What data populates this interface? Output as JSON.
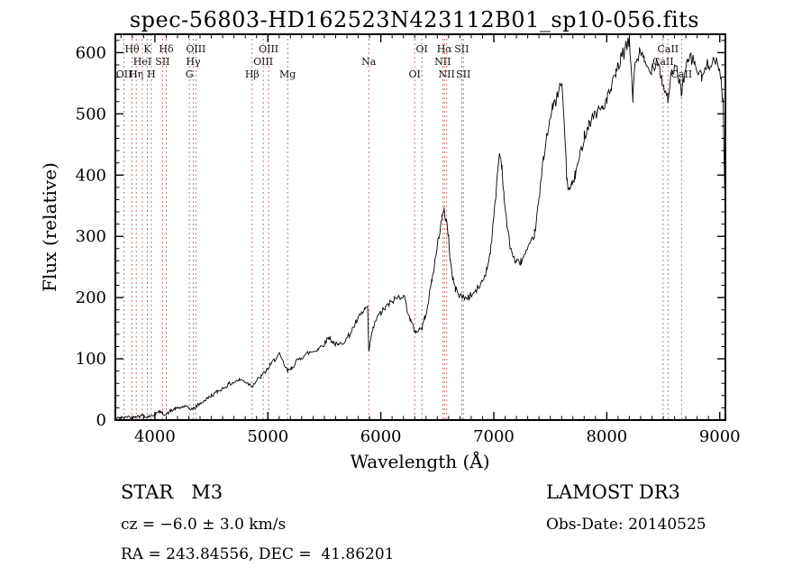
{
  "title": "spec-56803-HD162523N423112B01_sp10-056.fits",
  "annotations": {
    "object_type": "STAR   M3",
    "survey": "LAMOST DR3",
    "cz": "cz = −6.0 ± 3.0 km/s",
    "obs_date": "Obs-Date: 20140525",
    "radec": "RA = 243.84556, DEC =  41.86201"
  },
  "chart_data": {
    "type": "line",
    "title": "spec-56803-HD162523N423112B01_sp10-056.fits",
    "xlabel": "Wavelength (Å)",
    "ylabel": "Flux (relative)",
    "xlim": [
      3650,
      9050
    ],
    "ylim": [
      0,
      630
    ],
    "x_ticks": [
      4000,
      5000,
      6000,
      7000,
      8000,
      9000
    ],
    "y_ticks": [
      0,
      100,
      200,
      300,
      400,
      500,
      600
    ],
    "grid": false,
    "legend": "none",
    "line_color": "#000000",
    "marker_color": "#b25050",
    "noise": {
      "seed": 42,
      "base": 2.5,
      "scale": 0.016,
      "step": 9
    },
    "line_markers": [
      {
        "label": "OII",
        "wavelength": 3727,
        "row": 3
      },
      {
        "label": "Hθ",
        "wavelength": 3798,
        "row": 1
      },
      {
        "label": "Hη",
        "wavelength": 3835,
        "row": 3
      },
      {
        "label": "HeI",
        "wavelength": 3889,
        "row": 2
      },
      {
        "label": "K",
        "wavelength": 3933,
        "row": 1
      },
      {
        "label": "H",
        "wavelength": 3968,
        "row": 3
      },
      {
        "label": "SII",
        "wavelength": 4068,
        "row": 2
      },
      {
        "label": "Hδ",
        "wavelength": 4101,
        "row": 1
      },
      {
        "label": "G",
        "wavelength": 4305,
        "row": 3
      },
      {
        "label": "Hγ",
        "wavelength": 4340,
        "row": 2
      },
      {
        "label": "OIII",
        "wavelength": 4363,
        "row": 1
      },
      {
        "label": "Hβ",
        "wavelength": 4861,
        "row": 3
      },
      {
        "label": "OIII",
        "wavelength": 4959,
        "row": 2
      },
      {
        "label": "OIII",
        "wavelength": 5007,
        "row": 1
      },
      {
        "label": "Mg",
        "wavelength": 5175,
        "row": 3
      },
      {
        "label": "Na",
        "wavelength": 5893,
        "row": 2
      },
      {
        "label": "OI",
        "wavelength": 6300,
        "row": 3
      },
      {
        "label": "OI",
        "wavelength": 6363,
        "row": 1
      },
      {
        "label": "NII",
        "wavelength": 6548,
        "row": 2
      },
      {
        "label": "Hα",
        "wavelength": 6563,
        "row": 1
      },
      {
        "label": "NII",
        "wavelength": 6583,
        "row": 3
      },
      {
        "label": "SII",
        "wavelength": 6716,
        "row": 1
      },
      {
        "label": "SII",
        "wavelength": 6731,
        "row": 3
      },
      {
        "label": "CaII",
        "wavelength": 8498,
        "row": 2
      },
      {
        "label": "CaII",
        "wavelength": 8542,
        "row": 1
      },
      {
        "label": "CaII",
        "wavelength": 8662,
        "row": 3
      }
    ],
    "spectrum_anchors": [
      [
        3650,
        2
      ],
      [
        3690,
        4
      ],
      [
        3727,
        3
      ],
      [
        3760,
        6
      ],
      [
        3798,
        4
      ],
      [
        3830,
        7
      ],
      [
        3860,
        6
      ],
      [
        3900,
        8
      ],
      [
        3933,
        5
      ],
      [
        3950,
        7
      ],
      [
        3968,
        6
      ],
      [
        4000,
        10
      ],
      [
        4040,
        13
      ],
      [
        4070,
        11
      ],
      [
        4101,
        9
      ],
      [
        4140,
        15
      ],
      [
        4180,
        18
      ],
      [
        4220,
        20
      ],
      [
        4260,
        22
      ],
      [
        4305,
        19
      ],
      [
        4340,
        18
      ],
      [
        4363,
        22
      ],
      [
        4400,
        27
      ],
      [
        4450,
        33
      ],
      [
        4500,
        40
      ],
      [
        4550,
        46
      ],
      [
        4600,
        52
      ],
      [
        4650,
        58
      ],
      [
        4700,
        62
      ],
      [
        4750,
        66
      ],
      [
        4800,
        63
      ],
      [
        4830,
        59
      ],
      [
        4861,
        56
      ],
      [
        4900,
        64
      ],
      [
        4940,
        71
      ],
      [
        4980,
        79
      ],
      [
        5020,
        89
      ],
      [
        5060,
        99
      ],
      [
        5100,
        107
      ],
      [
        5140,
        92
      ],
      [
        5175,
        79
      ],
      [
        5210,
        85
      ],
      [
        5250,
        95
      ],
      [
        5300,
        103
      ],
      [
        5350,
        109
      ],
      [
        5400,
        112
      ],
      [
        5450,
        117
      ],
      [
        5500,
        125
      ],
      [
        5540,
        135
      ],
      [
        5580,
        127
      ],
      [
        5620,
        121
      ],
      [
        5660,
        127
      ],
      [
        5700,
        133
      ],
      [
        5740,
        145
      ],
      [
        5780,
        159
      ],
      [
        5820,
        171
      ],
      [
        5860,
        181
      ],
      [
        5883,
        185
      ],
      [
        5893,
        110
      ],
      [
        5903,
        124
      ],
      [
        5930,
        148
      ],
      [
        5960,
        165
      ],
      [
        6000,
        175
      ],
      [
        6040,
        183
      ],
      [
        6080,
        191
      ],
      [
        6120,
        197
      ],
      [
        6160,
        201
      ],
      [
        6200,
        205
      ],
      [
        6230,
        184
      ],
      [
        6260,
        163
      ],
      [
        6290,
        150
      ],
      [
        6310,
        144
      ],
      [
        6340,
        148
      ],
      [
        6365,
        150
      ],
      [
        6390,
        168
      ],
      [
        6420,
        193
      ],
      [
        6450,
        226
      ],
      [
        6480,
        260
      ],
      [
        6510,
        298
      ],
      [
        6540,
        328
      ],
      [
        6560,
        340
      ],
      [
        6580,
        328
      ],
      [
        6600,
        298
      ],
      [
        6615,
        260
      ],
      [
        6635,
        232
      ],
      [
        6660,
        214
      ],
      [
        6700,
        204
      ],
      [
        6740,
        199
      ],
      [
        6780,
        201
      ],
      [
        6820,
        207
      ],
      [
        6860,
        215
      ],
      [
        6900,
        227
      ],
      [
        6940,
        247
      ],
      [
        6970,
        278
      ],
      [
        7000,
        328
      ],
      [
        7030,
        398
      ],
      [
        7050,
        436
      ],
      [
        7070,
        418
      ],
      [
        7090,
        368
      ],
      [
        7110,
        328
      ],
      [
        7140,
        289
      ],
      [
        7170,
        267
      ],
      [
        7200,
        257
      ],
      [
        7240,
        259
      ],
      [
        7280,
        271
      ],
      [
        7320,
        283
      ],
      [
        7360,
        304
      ],
      [
        7400,
        358
      ],
      [
        7440,
        428
      ],
      [
        7480,
        478
      ],
      [
        7520,
        508
      ],
      [
        7560,
        528
      ],
      [
        7600,
        550
      ],
      [
        7620,
        498
      ],
      [
        7645,
        398
      ],
      [
        7665,
        374
      ],
      [
        7690,
        384
      ],
      [
        7720,
        399
      ],
      [
        7760,
        429
      ],
      [
        7800,
        464
      ],
      [
        7840,
        484
      ],
      [
        7880,
        497
      ],
      [
        7920,
        504
      ],
      [
        7960,
        511
      ],
      [
        8000,
        521
      ],
      [
        8040,
        541
      ],
      [
        8080,
        564
      ],
      [
        8120,
        587
      ],
      [
        8160,
        604
      ],
      [
        8200,
        617
      ],
      [
        8222,
        560
      ],
      [
        8232,
        523
      ],
      [
        8248,
        583
      ],
      [
        8290,
        599
      ],
      [
        8330,
        587
      ],
      [
        8370,
        571
      ],
      [
        8410,
        579
      ],
      [
        8450,
        589
      ],
      [
        8490,
        554
      ],
      [
        8510,
        539
      ],
      [
        8540,
        527
      ],
      [
        8570,
        559
      ],
      [
        8600,
        577
      ],
      [
        8630,
        564
      ],
      [
        8660,
        537
      ],
      [
        8690,
        567
      ],
      [
        8720,
        584
      ],
      [
        8750,
        591
      ],
      [
        8780,
        581
      ],
      [
        8810,
        567
      ],
      [
        8840,
        559
      ],
      [
        8870,
        571
      ],
      [
        8900,
        581
      ],
      [
        8930,
        589
      ],
      [
        8960,
        584
      ],
      [
        8990,
        574
      ],
      [
        9012,
        558
      ],
      [
        9030,
        518
      ],
      [
        9042,
        400
      ],
      [
        9050,
        150
      ]
    ]
  }
}
